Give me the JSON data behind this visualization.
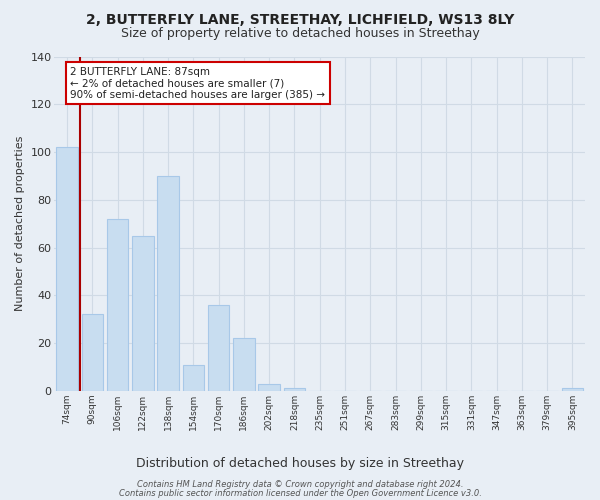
{
  "title": "2, BUTTERFLY LANE, STREETHAY, LICHFIELD, WS13 8LY",
  "subtitle": "Size of property relative to detached houses in Streethay",
  "xlabel": "Distribution of detached houses by size in Streethay",
  "ylabel": "Number of detached properties",
  "bar_labels": [
    "74sqm",
    "90sqm",
    "106sqm",
    "122sqm",
    "138sqm",
    "154sqm",
    "170sqm",
    "186sqm",
    "202sqm",
    "218sqm",
    "235sqm",
    "251sqm",
    "267sqm",
    "283sqm",
    "299sqm",
    "315sqm",
    "331sqm",
    "347sqm",
    "363sqm",
    "379sqm",
    "395sqm"
  ],
  "bar_values": [
    102,
    32,
    72,
    65,
    90,
    11,
    36,
    22,
    3,
    1,
    0,
    0,
    0,
    0,
    0,
    0,
    0,
    0,
    0,
    0,
    1
  ],
  "bar_color": "#c8ddf0",
  "bar_edge_color": "#a8c8e8",
  "vline_color": "#aa0000",
  "vline_x": 0.9,
  "ylim": [
    0,
    140
  ],
  "yticks": [
    0,
    20,
    40,
    60,
    80,
    100,
    120,
    140
  ],
  "annotation_title": "2 BUTTERFLY LANE: 87sqm",
  "annotation_line1": "← 2% of detached houses are smaller (7)",
  "annotation_line2": "90% of semi-detached houses are larger (385) →",
  "annotation_box_color": "#ffffff",
  "annotation_box_edge": "#cc0000",
  "footer1": "Contains HM Land Registry data © Crown copyright and database right 2024.",
  "footer2": "Contains public sector information licensed under the Open Government Licence v3.0.",
  "background_color": "#e8eef5",
  "plot_bg_color": "#e8eef5",
  "grid_color": "#d0dae5",
  "title_fontsize": 10,
  "subtitle_fontsize": 9
}
